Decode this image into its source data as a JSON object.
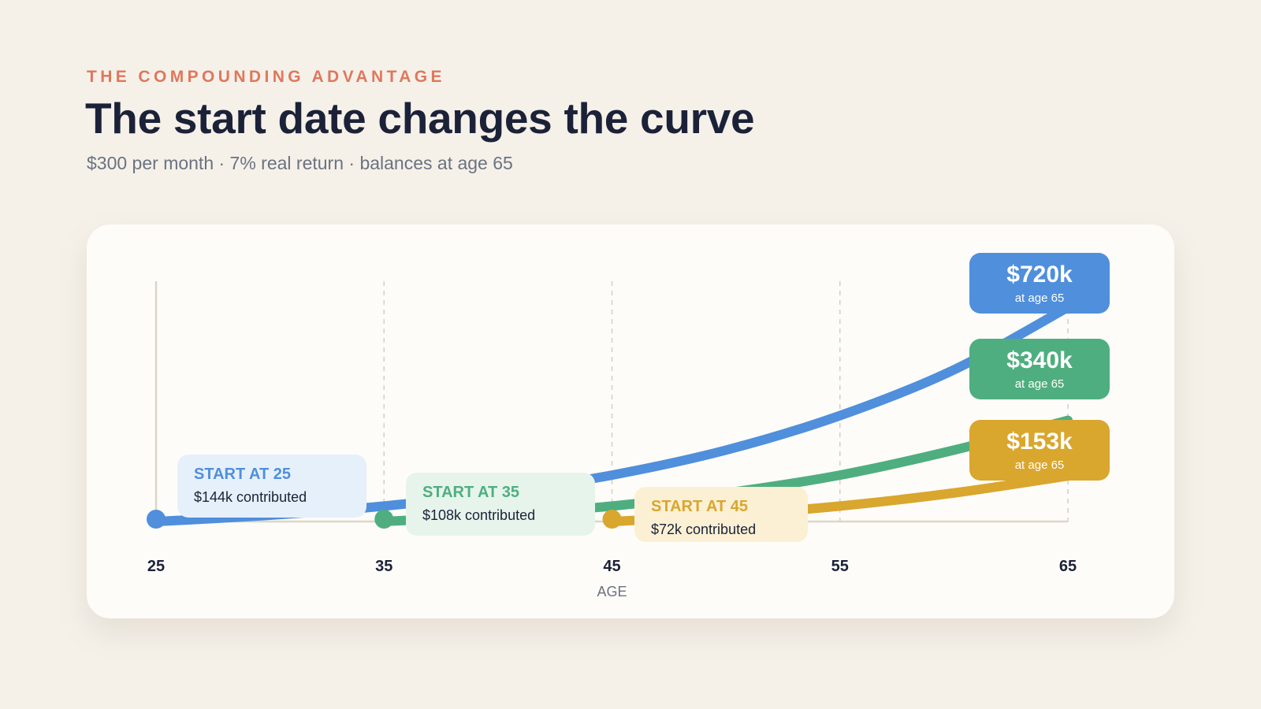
{
  "header": {
    "eyebrow": "THE COMPOUNDING ADVANTAGE",
    "title": "The start date changes the curve",
    "subtitle": "$300 per month · 7% real return · balances at age 65"
  },
  "chart_data": {
    "type": "line",
    "xlabel": "AGE",
    "x_ticks": [
      25,
      35,
      45,
      55,
      65
    ],
    "xlim": [
      25,
      65
    ],
    "grid": "vertical dashed",
    "series": [
      {
        "name": "START AT 25",
        "color": "#4f8fdc",
        "label_bg": "#e6f0fb",
        "contributed": "$144k contributed",
        "end_label": "$720k",
        "end_sub": "at age 65",
        "points": [
          [
            25,
            0
          ],
          [
            30,
            21
          ],
          [
            35,
            52
          ],
          [
            40,
            96
          ],
          [
            45,
            156
          ],
          [
            50,
            240
          ],
          [
            55,
            356
          ],
          [
            60,
            510
          ],
          [
            65,
            720
          ]
        ]
      },
      {
        "name": "START AT 35",
        "color": "#4fae7f",
        "label_bg": "#e6f4ec",
        "contributed": "$108k contributed",
        "end_label": "$340k",
        "end_sub": "at age 65",
        "points": [
          [
            35,
            0
          ],
          [
            40,
            21
          ],
          [
            45,
            52
          ],
          [
            50,
            96
          ],
          [
            55,
            156
          ],
          [
            60,
            240
          ],
          [
            65,
            340
          ]
        ]
      },
      {
        "name": "START AT 45",
        "color": "#d9a62e",
        "label_bg": "#fcf0d4",
        "contributed": "$72k contributed",
        "end_label": "$153k",
        "end_sub": "at age 65",
        "points": [
          [
            45,
            0
          ],
          [
            50,
            21
          ],
          [
            55,
            52
          ],
          [
            60,
            96
          ],
          [
            65,
            153
          ]
        ]
      }
    ]
  }
}
